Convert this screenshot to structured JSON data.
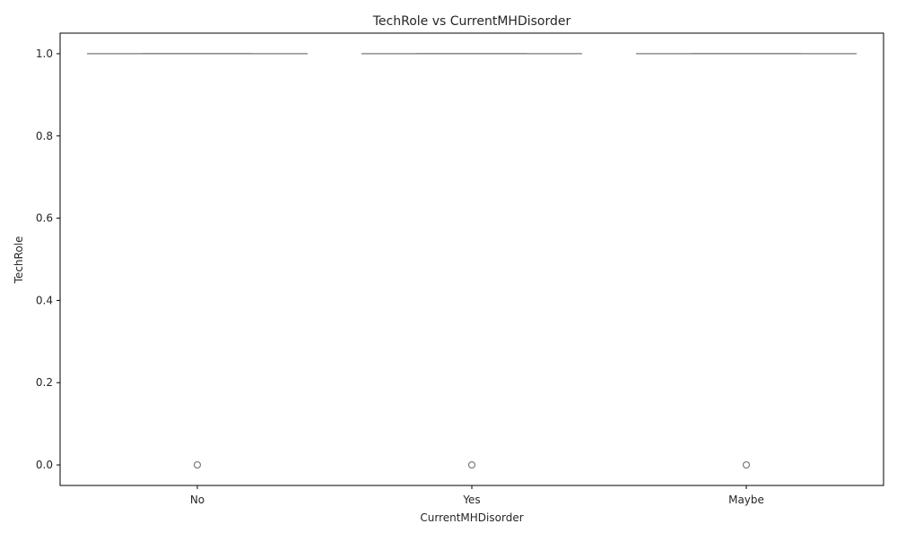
{
  "chart_data": {
    "type": "boxplot",
    "title": "TechRole vs CurrentMHDisorder",
    "xlabel": "CurrentMHDisorder",
    "ylabel": "TechRole",
    "categories": [
      "No",
      "Yes",
      "Maybe"
    ],
    "ylim": [
      -0.05,
      1.05
    ],
    "yticks": [
      "0.0",
      "0.2",
      "0.4",
      "0.6",
      "0.8",
      "1.0"
    ],
    "boxes": [
      {
        "category": "No",
        "whisker_low": 1.0,
        "q1": 1.0,
        "median": 1.0,
        "q3": 1.0,
        "whisker_high": 1.0,
        "outliers": [
          0.0
        ]
      },
      {
        "category": "Yes",
        "whisker_low": 1.0,
        "q1": 1.0,
        "median": 1.0,
        "q3": 1.0,
        "whisker_high": 1.0,
        "outliers": [
          0.0
        ]
      },
      {
        "category": "Maybe",
        "whisker_low": 1.0,
        "q1": 1.0,
        "median": 1.0,
        "q3": 1.0,
        "whisker_high": 1.0,
        "outliers": [
          0.0
        ]
      }
    ],
    "grid": false,
    "colors": {
      "box_line": "#7a7a7a",
      "outlier": "#7a7a7a",
      "axis": "#000000"
    }
  }
}
